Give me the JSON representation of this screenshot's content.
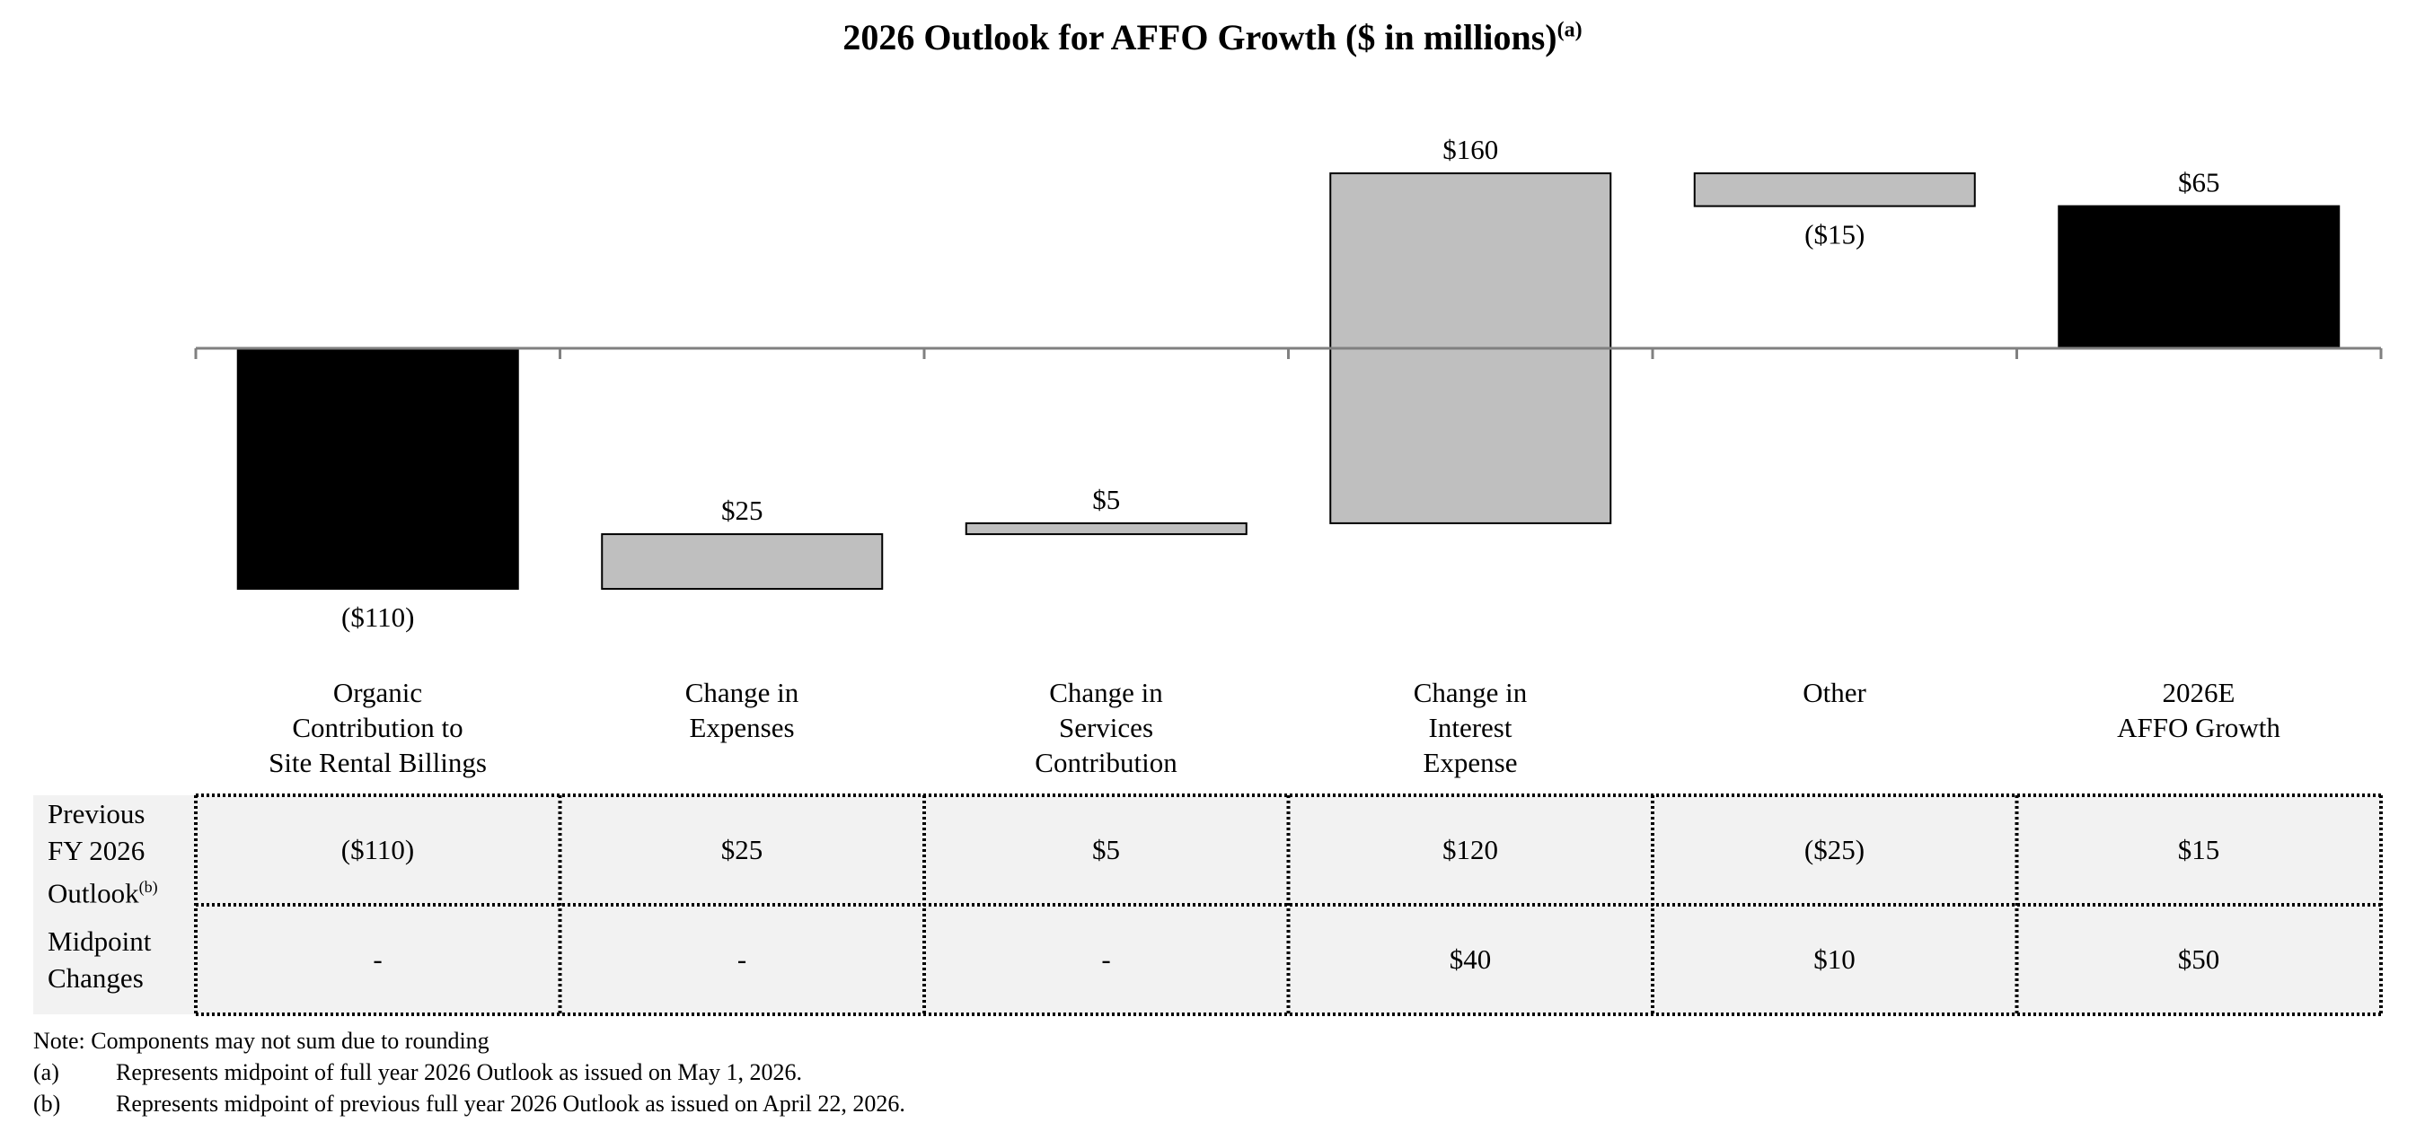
{
  "chart_data": {
    "type": "bar",
    "subtype": "waterfall",
    "title": "2026 Outlook for AFFO Growth ($ in millions)",
    "title_note": "(a)",
    "categories": [
      "Organic\nContribution to\nSite Rental Billings",
      "Change in\nExpenses",
      "Change in\nServices\nContribution",
      "Change in\nInterest\nExpense",
      "Other",
      "2026E\nAFFO Growth"
    ],
    "values": [
      -110,
      25,
      5,
      160,
      -15,
      65
    ],
    "value_labels": [
      "($110)",
      "$25",
      "$5",
      "$160",
      "($15)",
      "$65"
    ],
    "bar_kinds": [
      "total",
      "step",
      "step",
      "step",
      "step",
      "total"
    ],
    "colors": {
      "total": "#000000",
      "step": "#bfbfbf",
      "axis": "#808080"
    },
    "ylim": [
      -110,
      160
    ]
  },
  "table": {
    "rows": [
      {
        "label": "Previous\nFY 2026\nOutlook",
        "note": "(b)",
        "values": [
          "($110)",
          "$25",
          "$5",
          "$120",
          "($25)",
          "$15"
        ]
      },
      {
        "label": "Midpoint\nChanges",
        "note": "",
        "values": [
          "-",
          "-",
          "-",
          "$40",
          "$10",
          "$50"
        ]
      }
    ],
    "background": "#f2f2f2"
  },
  "footnotes": {
    "note": "Note: Components may not sum due to rounding",
    "items": [
      {
        "mark": "(a)",
        "text": "Represents midpoint of full year 2026 Outlook as issued on May 1, 2026."
      },
      {
        "mark": "(b)",
        "text": "Represents midpoint of previous full year 2026 Outlook as issued on April 22, 2026."
      }
    ]
  }
}
